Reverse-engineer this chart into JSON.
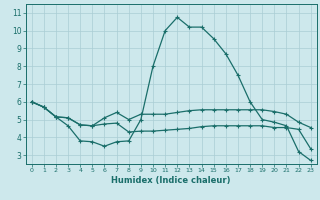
{
  "xlabel": "Humidex (Indice chaleur)",
  "bg_color": "#cde8ec",
  "grid_color": "#aacdd4",
  "line_color": "#1a6e6a",
  "xlim": [
    -0.5,
    23.5
  ],
  "ylim": [
    2.5,
    11.5
  ],
  "xticks": [
    0,
    1,
    2,
    3,
    4,
    5,
    6,
    7,
    8,
    9,
    10,
    11,
    12,
    13,
    14,
    15,
    16,
    17,
    18,
    19,
    20,
    21,
    22,
    23
  ],
  "yticks": [
    3,
    4,
    5,
    6,
    7,
    8,
    9,
    10,
    11
  ],
  "line1_x": [
    0,
    1,
    2,
    3,
    4,
    5,
    6,
    7,
    8,
    9,
    10,
    11,
    12,
    13,
    14,
    15,
    16,
    17,
    18,
    19,
    20,
    21,
    22,
    23
  ],
  "line1_y": [
    6.0,
    5.7,
    5.15,
    5.1,
    4.7,
    4.65,
    4.75,
    4.8,
    4.3,
    4.35,
    4.35,
    4.4,
    4.45,
    4.5,
    4.6,
    4.65,
    4.65,
    4.65,
    4.65,
    4.65,
    4.55,
    4.55,
    4.45,
    3.35
  ],
  "line2_x": [
    0,
    1,
    2,
    3,
    4,
    5,
    6,
    7,
    8,
    9,
    10,
    11,
    12,
    13,
    14,
    15,
    16,
    17,
    18,
    19,
    20,
    21,
    22,
    23
  ],
  "line2_y": [
    6.0,
    5.7,
    5.15,
    4.65,
    3.8,
    3.75,
    3.5,
    3.75,
    3.8,
    5.0,
    8.0,
    10.0,
    10.75,
    10.2,
    10.2,
    9.55,
    8.7,
    7.5,
    6.0,
    5.0,
    4.85,
    4.65,
    3.2,
    2.7
  ],
  "line3_x": [
    0,
    1,
    2,
    3,
    4,
    5,
    6,
    7,
    8,
    9,
    10,
    11,
    12,
    13,
    14,
    15,
    16,
    17,
    18,
    19,
    20,
    21,
    22,
    23
  ],
  "line3_y": [
    6.0,
    5.7,
    5.15,
    5.1,
    4.7,
    4.65,
    5.1,
    5.4,
    5.0,
    5.3,
    5.3,
    5.3,
    5.4,
    5.5,
    5.55,
    5.55,
    5.55,
    5.55,
    5.55,
    5.55,
    5.45,
    5.3,
    4.85,
    4.55
  ]
}
